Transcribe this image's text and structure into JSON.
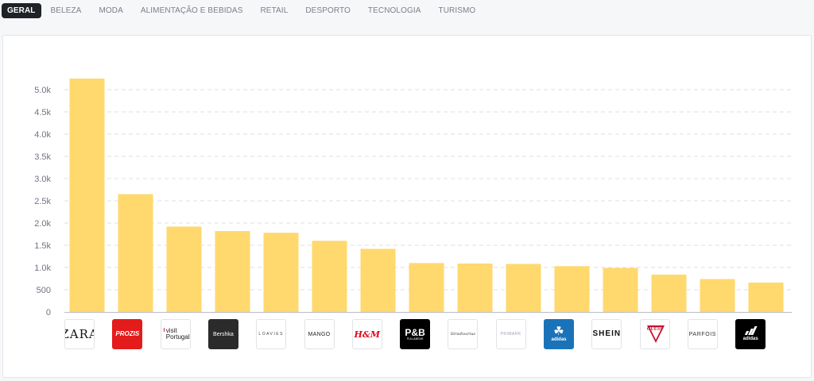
{
  "tabs": [
    {
      "label": "GERAL",
      "active": true
    },
    {
      "label": "BELEZA",
      "active": false
    },
    {
      "label": "MODA",
      "active": false
    },
    {
      "label": "ALIMENTAÇÃO E BEBIDAS",
      "active": false
    },
    {
      "label": "RETAIL",
      "active": false
    },
    {
      "label": "DESPORTO",
      "active": false
    },
    {
      "label": "TECNOLOGIA",
      "active": false
    },
    {
      "label": "TURISMO",
      "active": false
    }
  ],
  "colors": {
    "bar": "#ffd86e",
    "grid": "#dcdfe4",
    "axis": "#b8bcc4",
    "active_tab_bg": "#1f2226"
  },
  "chart_data": {
    "type": "bar",
    "categories": [
      "ZARA",
      "PROZIS",
      "visit Portugal",
      "Bershka",
      "LOAVIES",
      "MANGO",
      "H&M",
      "P&B PULL&BEAR",
      "Stradivarius",
      "PRIMARK",
      "adidas",
      "SHEIN",
      "GUESS",
      "PARFOIS",
      "adidas"
    ],
    "values": [
      5250,
      2650,
      1920,
      1820,
      1780,
      1600,
      1420,
      1100,
      1090,
      1080,
      1030,
      990,
      840,
      740,
      660
    ],
    "yticks": [
      0,
      500,
      1000,
      1500,
      2000,
      2500,
      3000,
      3500,
      4000,
      4500,
      5000
    ],
    "ytick_labels": [
      "0",
      "500",
      "1.0k",
      "1.5k",
      "2.0k",
      "2.5k",
      "3.0k",
      "3.5k",
      "4.0k",
      "4.5k",
      "5.0k"
    ],
    "ylim": [
      0,
      5500
    ],
    "grid": true,
    "x_tick_style": "brand-logos"
  },
  "logos": [
    {
      "name": "zara-logo",
      "text": "ZARA",
      "sub": "",
      "style": "zara"
    },
    {
      "name": "prozis-logo",
      "text": "PROZIS",
      "sub": "",
      "style": "prozis"
    },
    {
      "name": "visit-portugal-logo",
      "text": "visit",
      "sub": "Portugal",
      "style": "visit"
    },
    {
      "name": "bershka-logo",
      "text": "Bershka",
      "sub": "",
      "style": "bershka"
    },
    {
      "name": "loavies-logo",
      "text": "LOAVIES",
      "sub": "",
      "style": "loavies"
    },
    {
      "name": "mango-logo",
      "text": "MANGO",
      "sub": "",
      "style": "mango"
    },
    {
      "name": "hm-logo",
      "text": "H&M",
      "sub": "",
      "style": "hm"
    },
    {
      "name": "pull-and-bear-logo",
      "text": "P&B",
      "sub": "PULL&BEAR",
      "style": "pb"
    },
    {
      "name": "stradivarius-logo",
      "text": "Stradivarius",
      "sub": "",
      "style": "stradivarius"
    },
    {
      "name": "primark-logo",
      "text": "PRIMARK",
      "sub": "",
      "style": "primark"
    },
    {
      "name": "adidas-originals-logo",
      "text": "adidas",
      "sub": "",
      "style": "adidas-blue"
    },
    {
      "name": "shein-logo",
      "text": "SHEIN",
      "sub": "",
      "style": "shein"
    },
    {
      "name": "guess-logo",
      "text": "GUESS",
      "sub": "",
      "style": "guess"
    },
    {
      "name": "parfois-logo",
      "text": "PARFOIS",
      "sub": "",
      "style": "parfois"
    },
    {
      "name": "adidas-logo",
      "text": "adidas",
      "sub": "",
      "style": "adidas-black"
    }
  ]
}
